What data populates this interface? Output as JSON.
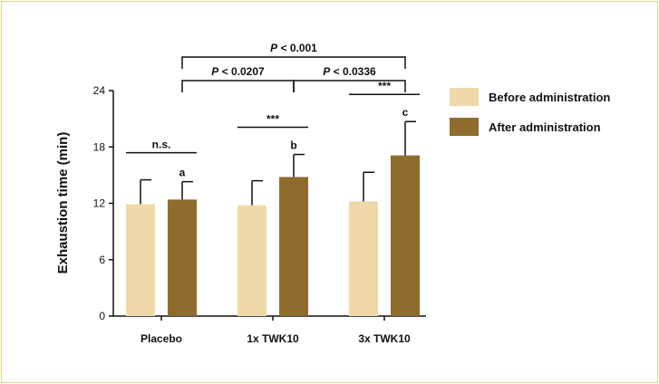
{
  "chart_data": {
    "type": "bar",
    "categories": [
      "Placebo",
      "1x TWK10",
      "3x TWK10"
    ],
    "series": [
      {
        "name": "Before administration",
        "color": "#f0d9a8",
        "values": [
          11.9,
          11.8,
          12.2
        ],
        "errors": [
          2.6,
          2.6,
          3.1
        ]
      },
      {
        "name": "After administration",
        "color": "#8f6b2d",
        "values": [
          12.4,
          14.8,
          17.1
        ],
        "errors": [
          1.9,
          2.4,
          3.6
        ]
      }
    ],
    "significance_letters": [
      "a",
      "b",
      "c"
    ],
    "xlabel": "",
    "ylabel": "Exhaustion time (min)",
    "yticks": [
      "0",
      "6",
      "12",
      "18",
      "24"
    ],
    "ylim": [
      0,
      24
    ],
    "within_group": [
      {
        "category": "Placebo",
        "label": "n.s."
      },
      {
        "category": "1x TWK10",
        "label": "***"
      },
      {
        "category": "3x TWK10",
        "label": "***"
      }
    ],
    "comparisons": [
      {
        "from": "Placebo",
        "to": "3x TWK10",
        "label": "P < 0.001",
        "level": 2
      },
      {
        "from": "Placebo",
        "to": "1x TWK10",
        "label": "P < 0.0207",
        "level": 1
      },
      {
        "from": "1x TWK10",
        "to": "3x TWK10",
        "label": "P < 0.0336",
        "level": 1
      }
    ],
    "legend_position": "right"
  }
}
